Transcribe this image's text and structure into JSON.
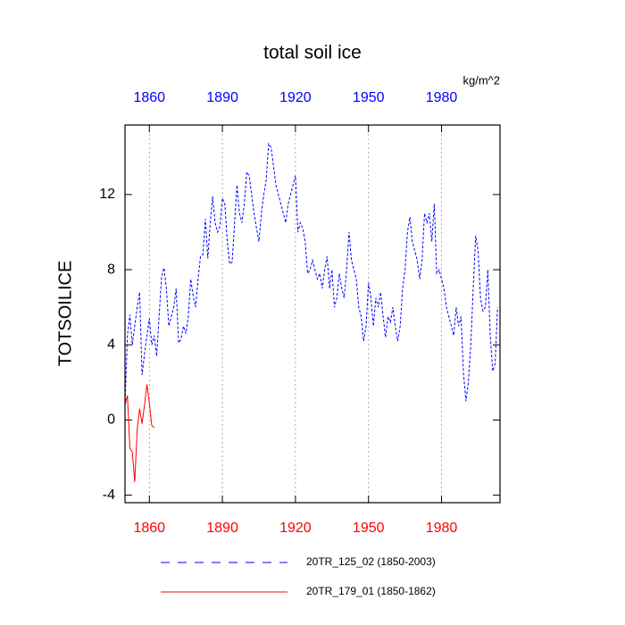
{
  "chart_data": {
    "type": "line",
    "title": "total soil ice",
    "y_label": "TOTSOILICE",
    "units": "kg/m^2",
    "xlim": [
      1850,
      2004
    ],
    "ylim": [
      -4.4,
      15.7
    ],
    "xticks": [
      1860,
      1890,
      1920,
      1950,
      1980
    ],
    "yticks": [
      -4,
      0,
      4,
      8,
      12
    ],
    "top_tick_label_color": "#0000ff",
    "bottom_tick_label_color": "#ff0000",
    "grid": "x",
    "series": [
      {
        "name": "20TR_125_02 (1850-2003)",
        "color": "#0000ff",
        "line_style": "dashed",
        "x": [
          1850,
          1851,
          1852,
          1853,
          1854,
          1855,
          1856,
          1857,
          1858,
          1859,
          1860,
          1861,
          1862,
          1863,
          1864,
          1865,
          1866,
          1867,
          1868,
          1869,
          1870,
          1871,
          1872,
          1873,
          1874,
          1875,
          1876,
          1877,
          1878,
          1879,
          1880,
          1881,
          1882,
          1883,
          1884,
          1885,
          1886,
          1887,
          1888,
          1889,
          1890,
          1891,
          1892,
          1893,
          1894,
          1895,
          1896,
          1897,
          1898,
          1899,
          1900,
          1901,
          1902,
          1903,
          1904,
          1905,
          1906,
          1907,
          1908,
          1909,
          1910,
          1911,
          1912,
          1913,
          1914,
          1915,
          1916,
          1917,
          1918,
          1919,
          1920,
          1921,
          1922,
          1923,
          1924,
          1925,
          1926,
          1927,
          1928,
          1929,
          1930,
          1931,
          1932,
          1933,
          1934,
          1935,
          1936,
          1937,
          1938,
          1939,
          1940,
          1941,
          1942,
          1943,
          1944,
          1945,
          1946,
          1947,
          1948,
          1949,
          1950,
          1951,
          1952,
          1953,
          1954,
          1955,
          1956,
          1957,
          1958,
          1959,
          1960,
          1961,
          1962,
          1963,
          1964,
          1965,
          1966,
          1967,
          1968,
          1969,
          1970,
          1971,
          1972,
          1973,
          1974,
          1975,
          1976,
          1977,
          1978,
          1979,
          1980,
          1981,
          1982,
          1983,
          1984,
          1985,
          1986,
          1987,
          1988,
          1989,
          1990,
          1991,
          1992,
          1993,
          1994,
          1995,
          1996,
          1997,
          1998,
          1999,
          2000,
          2001,
          2002,
          2003
        ],
        "values": [
          0.8,
          4.5,
          5.6,
          4.0,
          5.0,
          6.0,
          6.8,
          2.4,
          3.5,
          4.5,
          5.4,
          4.0,
          4.5,
          3.4,
          5.5,
          7.6,
          8.1,
          7.0,
          5.0,
          5.5,
          6.0,
          7.0,
          4.1,
          4.3,
          5.0,
          4.6,
          5.5,
          7.5,
          6.6,
          6.0,
          7.5,
          8.7,
          8.8,
          10.7,
          8.6,
          10.5,
          11.9,
          10.5,
          10.0,
          10.3,
          11.8,
          11.5,
          9.5,
          8.3,
          8.4,
          10.5,
          12.5,
          11.0,
          10.5,
          11.5,
          13.2,
          13.0,
          12.0,
          11.0,
          10.2,
          9.5,
          11.0,
          12.0,
          12.8,
          14.7,
          14.5,
          13.5,
          12.5,
          12.0,
          11.5,
          11.0,
          10.5,
          11.5,
          12.0,
          12.5,
          13.0,
          10.0,
          10.5,
          10.2,
          9.5,
          7.8,
          8.0,
          8.5,
          8.0,
          7.5,
          7.8,
          7.0,
          8.0,
          8.7,
          7.0,
          8.0,
          6.0,
          6.5,
          7.8,
          7.0,
          6.5,
          8.0,
          10.0,
          8.5,
          8.0,
          7.5,
          6.0,
          5.5,
          4.2,
          5.0,
          7.3,
          6.5,
          5.0,
          6.5,
          6.0,
          6.8,
          5.5,
          4.4,
          5.5,
          5.2,
          6.0,
          5.0,
          4.2,
          5.0,
          7.0,
          8.0,
          10.0,
          10.8,
          9.5,
          9.0,
          8.5,
          7.5,
          8.5,
          11.0,
          10.5,
          11.0,
          9.5,
          11.5,
          7.8,
          8.0,
          7.5,
          7.0,
          6.0,
          5.5,
          5.0,
          4.5,
          6.0,
          5.0,
          5.5,
          2.5,
          1.0,
          2.0,
          4.0,
          7.0,
          9.8,
          9.0,
          6.5,
          5.8,
          6.0,
          8.0,
          4.5,
          2.6,
          3.0,
          6.0
        ]
      },
      {
        "name": "20TR_179_01 (1850-1862)",
        "color": "#ff0000",
        "line_style": "solid",
        "x": [
          1850,
          1851,
          1852,
          1853,
          1854,
          1855,
          1856,
          1857,
          1858,
          1859,
          1860,
          1861,
          1862
        ],
        "values": [
          0.8,
          1.3,
          -1.5,
          -1.7,
          -3.3,
          -0.5,
          0.6,
          -0.2,
          0.8,
          1.9,
          0.9,
          -0.3,
          -0.4
        ]
      }
    ]
  }
}
